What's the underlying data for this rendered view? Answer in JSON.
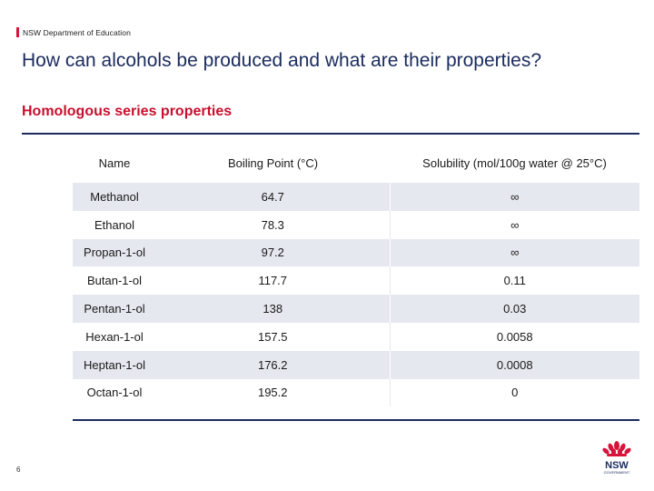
{
  "header": {
    "department": "NSW Department of Education"
  },
  "title": "How can alcohols be produced and what are their properties?",
  "subtitle": "Homologous series properties",
  "table": {
    "columns": [
      "Name",
      "Boiling Point (°C)",
      "Solubility (mol/100g water @ 25°C)"
    ],
    "rows": [
      {
        "name": "Methanol",
        "bp": "64.7",
        "sol": "∞"
      },
      {
        "name": "Ethanol",
        "bp": "78.3",
        "sol": "∞"
      },
      {
        "name": "Propan-1-ol",
        "bp": "97.2",
        "sol": "∞"
      },
      {
        "name": "Butan-1-ol",
        "bp": "117.7",
        "sol": "0.11"
      },
      {
        "name": "Pentan-1-ol",
        "bp": "138",
        "sol": "0.03"
      },
      {
        "name": "Hexan-1-ol",
        "bp": "157.5",
        "sol": "0.0058"
      },
      {
        "name": "Heptan-1-ol",
        "bp": "176.2",
        "sol": "0.0008"
      },
      {
        "name": "Octan-1-ol",
        "bp": "195.2",
        "sol": "0"
      }
    ]
  },
  "footer": {
    "page_number": "6"
  },
  "logo": {
    "text": "NSW",
    "subtext": "GOVERNMENT",
    "icon": "waratah-icon"
  },
  "colors": {
    "navy": "#1a2b5e",
    "red": "#c8102e",
    "row_shade": "#e6e8ef"
  }
}
